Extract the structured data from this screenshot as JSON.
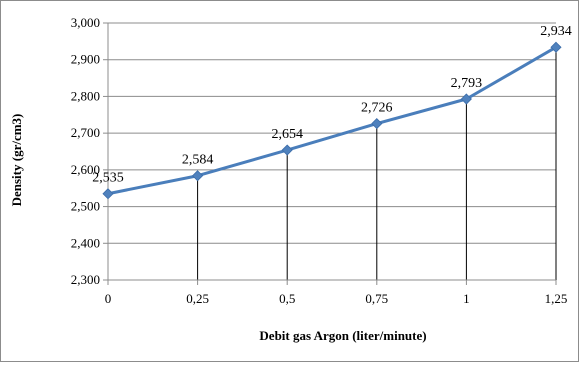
{
  "chart_data": {
    "type": "line",
    "title": "",
    "xlabel": "Debit gas Argon (liter/minute)",
    "ylabel": "Density (gr/cm3)",
    "x": [
      "0",
      "0,25",
      "0,5",
      "0,75",
      "1",
      "1,25"
    ],
    "series": [
      {
        "values": [
          2535,
          2584,
          2654,
          2726,
          2793,
          2934
        ],
        "labels": [
          "2,535",
          "2,584",
          "2,654",
          "2,726",
          "2,793",
          "2,934"
        ]
      }
    ],
    "ylim": [
      2300,
      3000
    ],
    "y_ticks": [
      "2,300",
      "2,400",
      "2,500",
      "2,600",
      "2,700",
      "2,800",
      "2,900",
      "3,000"
    ],
    "grid": "horizontal",
    "drop_lines": true,
    "line_color": "#4a7ebb",
    "marker_color": "#4f81bd",
    "marker": "diamond"
  }
}
